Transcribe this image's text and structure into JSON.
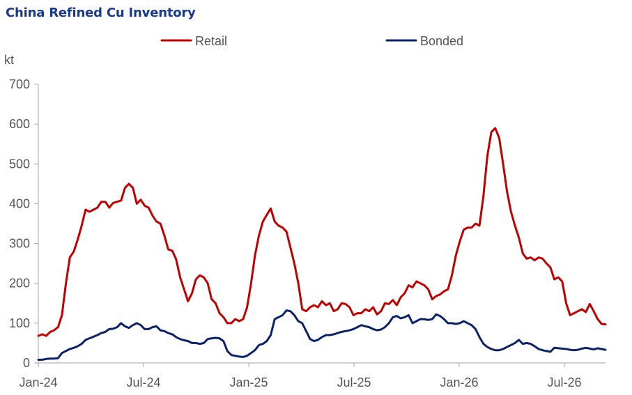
{
  "chart_data": {
    "type": "line",
    "title": "China Refined Cu Inventory",
    "ylabel": "kt",
    "xlabel": "",
    "ylim": [
      0,
      700
    ],
    "yticks": [
      0,
      100,
      200,
      300,
      400,
      500,
      600,
      700
    ],
    "grid": false,
    "legend_position": "top",
    "x_tick_labels": [
      "Jan-24",
      "Jul-24",
      "Jan-25",
      "Jul-25",
      "Jan-26",
      "Jul-26"
    ],
    "series": [
      {
        "name": "Retail",
        "color": "#c00000",
        "points": [
          [
            "2024-01-01",
            68
          ],
          [
            "2024-01-08",
            72
          ],
          [
            "2024-01-15",
            68
          ],
          [
            "2024-01-22",
            78
          ],
          [
            "2024-01-29",
            82
          ],
          [
            "2024-02-05",
            90
          ],
          [
            "2024-02-12",
            120
          ],
          [
            "2024-02-19",
            200
          ],
          [
            "2024-02-26",
            265
          ],
          [
            "2024-03-04",
            280
          ],
          [
            "2024-03-11",
            310
          ],
          [
            "2024-03-18",
            345
          ],
          [
            "2024-03-25",
            385
          ],
          [
            "2024-04-01",
            380
          ],
          [
            "2024-04-08",
            385
          ],
          [
            "2024-04-15",
            390
          ],
          [
            "2024-04-22",
            405
          ],
          [
            "2024-04-29",
            405
          ],
          [
            "2024-05-06",
            390
          ],
          [
            "2024-05-13",
            402
          ],
          [
            "2024-05-20",
            405
          ],
          [
            "2024-05-27",
            408
          ],
          [
            "2024-06-03",
            440
          ],
          [
            "2024-06-10",
            450
          ],
          [
            "2024-06-17",
            440
          ],
          [
            "2024-06-24",
            400
          ],
          [
            "2024-07-01",
            410
          ],
          [
            "2024-07-08",
            395
          ],
          [
            "2024-07-15",
            390
          ],
          [
            "2024-07-22",
            370
          ],
          [
            "2024-07-29",
            355
          ],
          [
            "2024-08-05",
            350
          ],
          [
            "2024-08-12",
            320
          ],
          [
            "2024-08-19",
            285
          ],
          [
            "2024-08-26",
            282
          ],
          [
            "2024-09-02",
            260
          ],
          [
            "2024-09-09",
            215
          ],
          [
            "2024-09-16",
            185
          ],
          [
            "2024-09-23",
            155
          ],
          [
            "2024-09-30",
            175
          ],
          [
            "2024-10-07",
            210
          ],
          [
            "2024-10-14",
            220
          ],
          [
            "2024-10-21",
            215
          ],
          [
            "2024-10-28",
            200
          ],
          [
            "2024-11-04",
            160
          ],
          [
            "2024-11-11",
            150
          ],
          [
            "2024-11-18",
            125
          ],
          [
            "2024-11-25",
            115
          ],
          [
            "2024-12-02",
            100
          ],
          [
            "2024-12-09",
            100
          ],
          [
            "2024-12-16",
            110
          ],
          [
            "2024-12-23",
            105
          ],
          [
            "2024-12-30",
            110
          ],
          [
            "2025-01-06",
            140
          ],
          [
            "2025-01-13",
            200
          ],
          [
            "2025-01-20",
            270
          ],
          [
            "2025-01-27",
            320
          ],
          [
            "2025-02-03",
            355
          ],
          [
            "2025-02-10",
            372
          ],
          [
            "2025-02-17",
            388
          ],
          [
            "2025-02-24",
            355
          ],
          [
            "2025-03-03",
            345
          ],
          [
            "2025-03-10",
            340
          ],
          [
            "2025-03-17",
            330
          ],
          [
            "2025-03-24",
            290
          ],
          [
            "2025-03-31",
            250
          ],
          [
            "2025-04-07",
            200
          ],
          [
            "2025-04-14",
            135
          ],
          [
            "2025-04-21",
            130
          ],
          [
            "2025-04-28",
            140
          ],
          [
            "2025-05-05",
            145
          ],
          [
            "2025-05-12",
            140
          ],
          [
            "2025-05-19",
            155
          ],
          [
            "2025-05-26",
            145
          ],
          [
            "2025-06-02",
            150
          ],
          [
            "2025-06-09",
            130
          ],
          [
            "2025-06-16",
            135
          ],
          [
            "2025-06-23",
            150
          ],
          [
            "2025-06-30",
            148
          ],
          [
            "2025-07-07",
            140
          ],
          [
            "2025-07-14",
            120
          ],
          [
            "2025-07-21",
            125
          ],
          [
            "2025-07-28",
            125
          ],
          [
            "2025-08-04",
            135
          ],
          [
            "2025-08-11",
            130
          ],
          [
            "2025-08-18",
            140
          ],
          [
            "2025-08-25",
            122
          ],
          [
            "2025-09-01",
            130
          ],
          [
            "2025-09-08",
            150
          ],
          [
            "2025-09-15",
            148
          ],
          [
            "2025-09-22",
            158
          ],
          [
            "2025-09-29",
            145
          ],
          [
            "2025-10-06",
            165
          ],
          [
            "2025-10-13",
            175
          ],
          [
            "2025-10-20",
            195
          ],
          [
            "2025-10-27",
            190
          ],
          [
            "2025-11-03",
            205
          ],
          [
            "2025-11-10",
            200
          ],
          [
            "2025-11-17",
            195
          ],
          [
            "2025-11-24",
            185
          ],
          [
            "2025-12-01",
            160
          ],
          [
            "2025-12-08",
            168
          ],
          [
            "2025-12-15",
            172
          ],
          [
            "2025-12-22",
            180
          ],
          [
            "2025-12-29",
            185
          ],
          [
            "2026-01-05",
            220
          ],
          [
            "2026-01-12",
            270
          ],
          [
            "2026-01-19",
            305
          ],
          [
            "2026-01-26",
            335
          ],
          [
            "2026-02-02",
            340
          ],
          [
            "2026-02-09",
            340
          ],
          [
            "2026-02-16",
            350
          ],
          [
            "2026-02-23",
            345
          ],
          [
            "2026-03-02",
            420
          ],
          [
            "2026-03-09",
            520
          ],
          [
            "2026-03-16",
            580
          ],
          [
            "2026-03-23",
            590
          ],
          [
            "2026-03-30",
            565
          ],
          [
            "2026-04-06",
            500
          ],
          [
            "2026-04-13",
            430
          ],
          [
            "2026-04-20",
            380
          ],
          [
            "2026-04-27",
            345
          ],
          [
            "2026-05-04",
            315
          ],
          [
            "2026-05-11",
            275
          ],
          [
            "2026-05-18",
            262
          ],
          [
            "2026-05-25",
            265
          ],
          [
            "2026-06-01",
            258
          ],
          [
            "2026-06-08",
            265
          ],
          [
            "2026-06-15",
            262
          ],
          [
            "2026-06-22",
            250
          ],
          [
            "2026-06-29",
            240
          ],
          [
            "2026-07-06",
            210
          ],
          [
            "2026-07-13",
            215
          ],
          [
            "2026-07-20",
            205
          ],
          [
            "2026-07-27",
            150
          ],
          [
            "2026-08-03",
            120
          ],
          [
            "2026-08-10",
            125
          ],
          [
            "2026-08-17",
            130
          ],
          [
            "2026-08-24",
            135
          ],
          [
            "2026-08-31",
            128
          ],
          [
            "2026-09-07",
            148
          ],
          [
            "2026-09-14",
            130
          ],
          [
            "2026-09-21",
            110
          ],
          [
            "2026-09-28",
            98
          ],
          [
            "2026-10-05",
            97
          ]
        ]
      },
      {
        "name": "Bonded",
        "color": "#0b2366",
        "points": [
          [
            "2024-01-01",
            8
          ],
          [
            "2024-01-08",
            8
          ],
          [
            "2024-01-15",
            10
          ],
          [
            "2024-01-22",
            11
          ],
          [
            "2024-01-29",
            11
          ],
          [
            "2024-02-05",
            12
          ],
          [
            "2024-02-12",
            25
          ],
          [
            "2024-02-19",
            30
          ],
          [
            "2024-02-26",
            35
          ],
          [
            "2024-03-04",
            38
          ],
          [
            "2024-03-11",
            42
          ],
          [
            "2024-03-18",
            48
          ],
          [
            "2024-03-25",
            58
          ],
          [
            "2024-04-01",
            62
          ],
          [
            "2024-04-08",
            66
          ],
          [
            "2024-04-15",
            70
          ],
          [
            "2024-04-22",
            75
          ],
          [
            "2024-04-29",
            78
          ],
          [
            "2024-05-06",
            85
          ],
          [
            "2024-05-13",
            86
          ],
          [
            "2024-05-20",
            90
          ],
          [
            "2024-05-27",
            100
          ],
          [
            "2024-06-03",
            92
          ],
          [
            "2024-06-10",
            88
          ],
          [
            "2024-06-17",
            95
          ],
          [
            "2024-06-24",
            100
          ],
          [
            "2024-07-01",
            95
          ],
          [
            "2024-07-08",
            85
          ],
          [
            "2024-07-15",
            85
          ],
          [
            "2024-07-22",
            90
          ],
          [
            "2024-07-29",
            92
          ],
          [
            "2024-08-05",
            82
          ],
          [
            "2024-08-12",
            80
          ],
          [
            "2024-08-19",
            75
          ],
          [
            "2024-08-26",
            72
          ],
          [
            "2024-09-02",
            65
          ],
          [
            "2024-09-09",
            60
          ],
          [
            "2024-09-16",
            57
          ],
          [
            "2024-09-23",
            55
          ],
          [
            "2024-09-30",
            50
          ],
          [
            "2024-10-07",
            50
          ],
          [
            "2024-10-14",
            48
          ],
          [
            "2024-10-21",
            50
          ],
          [
            "2024-10-28",
            60
          ],
          [
            "2024-11-04",
            62
          ],
          [
            "2024-11-11",
            63
          ],
          [
            "2024-11-18",
            62
          ],
          [
            "2024-11-25",
            55
          ],
          [
            "2024-12-02",
            30
          ],
          [
            "2024-12-09",
            20
          ],
          [
            "2024-12-16",
            18
          ],
          [
            "2024-12-23",
            16
          ],
          [
            "2024-12-30",
            15
          ],
          [
            "2025-01-06",
            18
          ],
          [
            "2025-01-13",
            25
          ],
          [
            "2025-01-20",
            32
          ],
          [
            "2025-01-27",
            45
          ],
          [
            "2025-02-03",
            48
          ],
          [
            "2025-02-10",
            55
          ],
          [
            "2025-02-17",
            70
          ],
          [
            "2025-02-24",
            110
          ],
          [
            "2025-03-03",
            115
          ],
          [
            "2025-03-10",
            120
          ],
          [
            "2025-03-17",
            132
          ],
          [
            "2025-03-24",
            130
          ],
          [
            "2025-03-31",
            120
          ],
          [
            "2025-04-07",
            105
          ],
          [
            "2025-04-14",
            100
          ],
          [
            "2025-04-21",
            80
          ],
          [
            "2025-04-28",
            60
          ],
          [
            "2025-05-05",
            55
          ],
          [
            "2025-05-12",
            58
          ],
          [
            "2025-05-19",
            65
          ],
          [
            "2025-05-26",
            70
          ],
          [
            "2025-06-02",
            70
          ],
          [
            "2025-06-09",
            72
          ],
          [
            "2025-06-16",
            75
          ],
          [
            "2025-06-23",
            78
          ],
          [
            "2025-06-30",
            80
          ],
          [
            "2025-07-07",
            82
          ],
          [
            "2025-07-14",
            85
          ],
          [
            "2025-07-21",
            90
          ],
          [
            "2025-07-28",
            95
          ],
          [
            "2025-08-04",
            92
          ],
          [
            "2025-08-11",
            90
          ],
          [
            "2025-08-18",
            85
          ],
          [
            "2025-08-25",
            82
          ],
          [
            "2025-09-01",
            84
          ],
          [
            "2025-09-08",
            90
          ],
          [
            "2025-09-15",
            100
          ],
          [
            "2025-09-22",
            115
          ],
          [
            "2025-09-29",
            118
          ],
          [
            "2025-10-06",
            112
          ],
          [
            "2025-10-13",
            115
          ],
          [
            "2025-10-20",
            120
          ],
          [
            "2025-10-27",
            100
          ],
          [
            "2025-11-03",
            105
          ],
          [
            "2025-11-10",
            110
          ],
          [
            "2025-11-17",
            110
          ],
          [
            "2025-11-24",
            108
          ],
          [
            "2025-12-01",
            110
          ],
          [
            "2025-12-08",
            122
          ],
          [
            "2025-12-15",
            118
          ],
          [
            "2025-12-22",
            110
          ],
          [
            "2025-12-29",
            100
          ],
          [
            "2026-01-05",
            100
          ],
          [
            "2026-01-12",
            98
          ],
          [
            "2026-01-19",
            100
          ],
          [
            "2026-01-26",
            105
          ],
          [
            "2026-02-02",
            100
          ],
          [
            "2026-02-09",
            95
          ],
          [
            "2026-02-16",
            85
          ],
          [
            "2026-02-23",
            65
          ],
          [
            "2026-03-02",
            48
          ],
          [
            "2026-03-09",
            40
          ],
          [
            "2026-03-16",
            35
          ],
          [
            "2026-03-23",
            32
          ],
          [
            "2026-03-30",
            32
          ],
          [
            "2026-04-06",
            35
          ],
          [
            "2026-04-13",
            40
          ],
          [
            "2026-04-20",
            45
          ],
          [
            "2026-04-27",
            50
          ],
          [
            "2026-05-04",
            58
          ],
          [
            "2026-05-11",
            48
          ],
          [
            "2026-05-18",
            50
          ],
          [
            "2026-05-25",
            48
          ],
          [
            "2026-06-01",
            42
          ],
          [
            "2026-06-08",
            35
          ],
          [
            "2026-06-15",
            32
          ],
          [
            "2026-06-22",
            30
          ],
          [
            "2026-06-29",
            28
          ],
          [
            "2026-07-06",
            38
          ],
          [
            "2026-07-13",
            37
          ],
          [
            "2026-07-20",
            36
          ],
          [
            "2026-07-27",
            35
          ],
          [
            "2026-08-03",
            33
          ],
          [
            "2026-08-10",
            32
          ],
          [
            "2026-08-17",
            33
          ],
          [
            "2026-08-24",
            36
          ],
          [
            "2026-08-31",
            38
          ],
          [
            "2026-09-07",
            36
          ],
          [
            "2026-09-14",
            34
          ],
          [
            "2026-09-21",
            37
          ],
          [
            "2026-09-28",
            35
          ],
          [
            "2026-10-05",
            33
          ]
        ]
      }
    ]
  }
}
